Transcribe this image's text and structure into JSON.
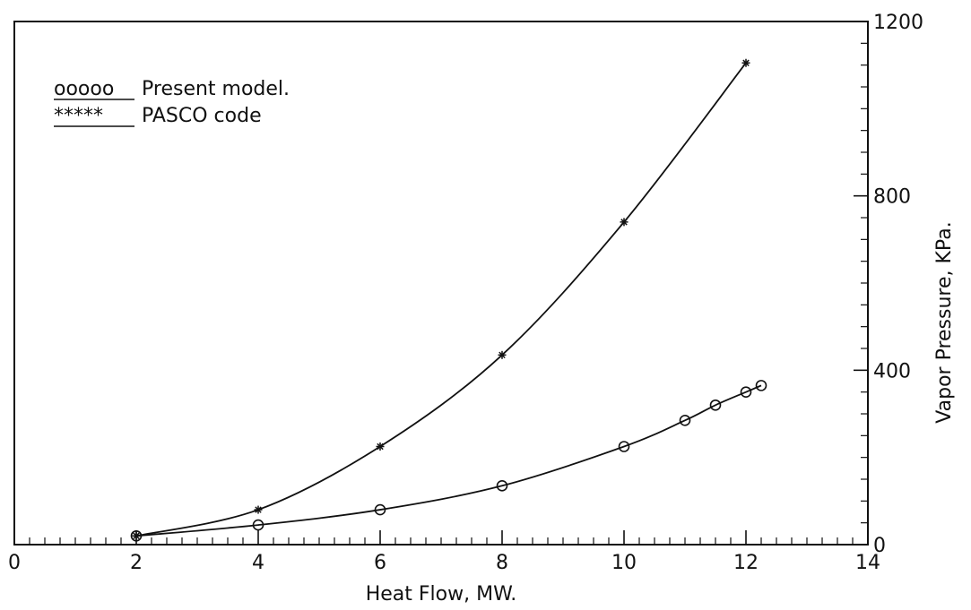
{
  "chart_data": {
    "type": "line",
    "title": "",
    "xlabel": "Heat Flow, MW.",
    "ylabel": "Vapor Pressure, KPa.",
    "xlim": [
      0,
      14
    ],
    "ylim": [
      0,
      1200
    ],
    "x_ticks": [
      "0",
      "2",
      "4",
      "6",
      "8",
      "10",
      "12",
      "14"
    ],
    "y_ticks": [
      "0",
      "400",
      "800",
      "1200"
    ],
    "y_axis_side": "right",
    "grid": false,
    "legend_placement": "top-left",
    "series": [
      {
        "name": "Present model.",
        "legend_symbol": "ooooo",
        "marker": "circle",
        "color": "#111111",
        "x": [
          2,
          4,
          6,
          8,
          10,
          11,
          11.5,
          12,
          12.25
        ],
        "y": [
          20,
          45,
          80,
          135,
          225,
          285,
          320,
          350,
          365
        ]
      },
      {
        "name": "PASCO code",
        "legend_symbol": "*****",
        "marker": "star",
        "color": "#111111",
        "x": [
          2,
          4,
          6,
          8,
          10,
          12
        ],
        "y": [
          20,
          80,
          225,
          435,
          740,
          1105
        ]
      }
    ]
  }
}
